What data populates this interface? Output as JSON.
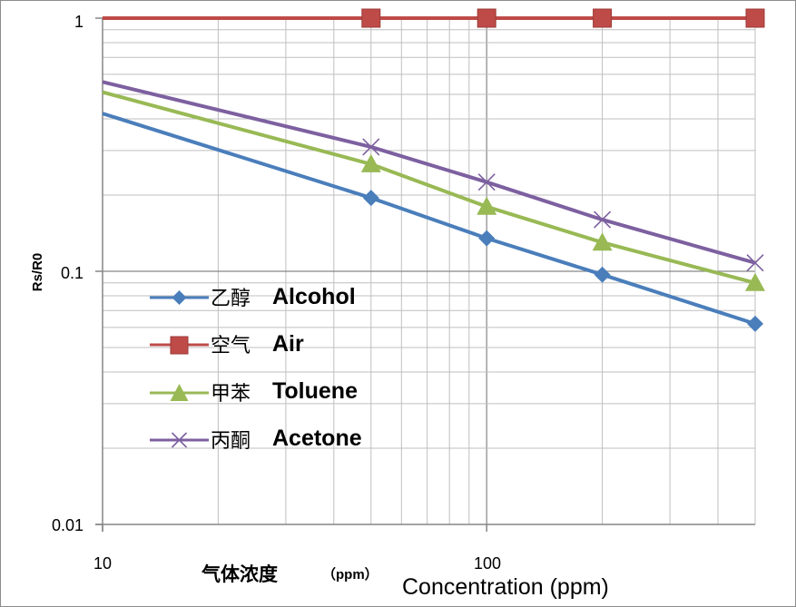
{
  "chart_data": {
    "type": "line",
    "x_scale": "log",
    "y_scale": "log",
    "x": [
      10,
      50,
      100,
      200,
      500
    ],
    "xlim": [
      10,
      500
    ],
    "ylim": [
      0.01,
      1
    ],
    "x_ticks": [
      "10",
      "100"
    ],
    "y_ticks": [
      "0.01",
      "0.1",
      "1"
    ],
    "ylabel": "Rs/R0",
    "xlabel_cn": "气体浓度",
    "xlabel_unit": "（ppm）",
    "xlabel_en": "Concentration (ppm)",
    "grid": true,
    "legend_position": "left-center",
    "series": [
      {
        "name": "乙醇 Alcohol",
        "name_cn": "乙醇",
        "name_en": "Alcohol",
        "color": "#4A7EBB",
        "marker": "diamond",
        "values": [
          0.42,
          0.195,
          0.135,
          0.097,
          0.062
        ]
      },
      {
        "name": "空气 Air",
        "name_cn": "空气",
        "name_en": "Air",
        "color": "#BE4B48",
        "marker": "square",
        "values": [
          1,
          1,
          1,
          1,
          1
        ]
      },
      {
        "name": "甲苯 Toluene",
        "name_cn": "甲苯",
        "name_en": "Toluene",
        "color": "#98B954",
        "marker": "triangle",
        "values": [
          0.51,
          0.265,
          0.18,
          0.13,
          0.09
        ]
      },
      {
        "name": "丙酮 Acetone",
        "name_cn": "丙酮",
        "name_en": "Acetone",
        "color": "#7D60A0",
        "marker": "x",
        "values": [
          0.56,
          0.31,
          0.225,
          0.16,
          0.108
        ]
      }
    ]
  }
}
